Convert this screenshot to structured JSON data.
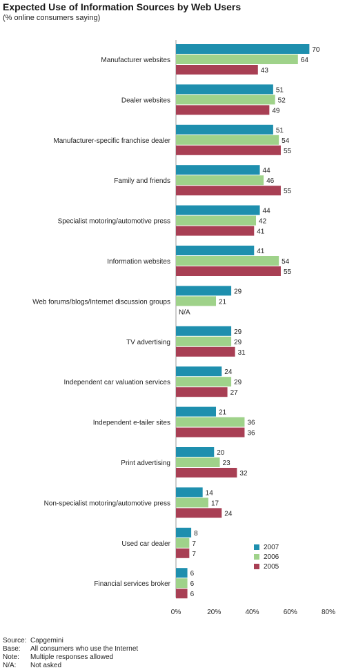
{
  "chart_data": {
    "type": "bar",
    "orientation": "horizontal",
    "title": "Expected Use of Information Sources by Web Users",
    "subtitle": "(% online consumers saying)",
    "categories": [
      "Manufacturer websites",
      "Dealer websites",
      "Manufacturer-specific franchise dealer",
      "Family and friends",
      "Specialist motoring/automotive press",
      "Information websites",
      "Web forums/blogs/Internet discussion groups",
      "TV advertising",
      "Independent car valuation services",
      "Independent e-tailer sites",
      "Print advertising",
      "Non-specialist motoring/automotive press",
      "Used car dealer",
      "Financial services broker"
    ],
    "series": [
      {
        "name": "2007",
        "color": "#1e8fae",
        "values": [
          70,
          51,
          51,
          44,
          44,
          41,
          29,
          29,
          24,
          21,
          20,
          14,
          8,
          6
        ]
      },
      {
        "name": "2006",
        "color": "#9fd28a",
        "values": [
          64,
          52,
          54,
          46,
          42,
          54,
          21,
          29,
          29,
          36,
          23,
          17,
          7,
          6
        ]
      },
      {
        "name": "2005",
        "color": "#a83f54",
        "values": [
          43,
          49,
          55,
          55,
          41,
          55,
          null,
          31,
          27,
          36,
          32,
          24,
          7,
          6
        ]
      }
    ],
    "na_label": "N/A",
    "xlim": [
      0,
      80
    ],
    "xticks": [
      "0%",
      "20%",
      "40%",
      "60%",
      "80%"
    ],
    "grid": false,
    "legend_position": "bottom-right"
  },
  "footer": [
    {
      "key": "Source:",
      "value": "Capgemini"
    },
    {
      "key": "Base:",
      "value": "All consumers who use the Internet"
    },
    {
      "key": "Note:",
      "value": "Multiple responses allowed"
    },
    {
      "key": "N/A:",
      "value": "Not asked"
    }
  ]
}
